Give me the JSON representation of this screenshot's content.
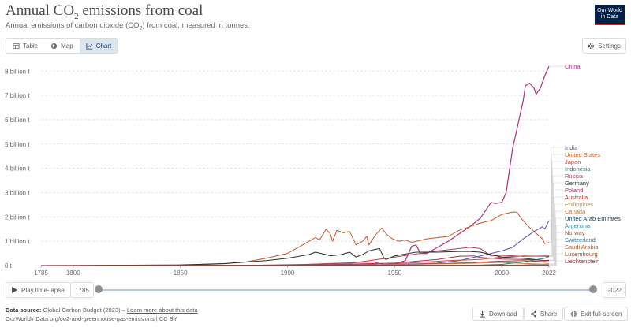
{
  "header": {
    "title_main": "Annual CO",
    "title_sub": "2",
    "title_end": " emissions from coal",
    "subtitle_a": "Annual emissions of carbon dioxide (CO",
    "subtitle_sub": "2",
    "subtitle_b": ") from coal, measured in tonnes.",
    "logo_line1": "Our World",
    "logo_line2": "in Data"
  },
  "tabs": [
    {
      "label": "Table",
      "icon": "table-icon",
      "active": false
    },
    {
      "label": "Map",
      "icon": "globe-icon",
      "active": false
    },
    {
      "label": "Chart",
      "icon": "line-chart-icon",
      "active": true
    }
  ],
  "settings_label": "Settings",
  "controls": {
    "play_label": "Play time-lapse",
    "start_year": "1785",
    "end_year": "2022"
  },
  "footer": {
    "source_label": "Data source:",
    "source_text": "Global Carbon Budget (2023) –",
    "learn_more": "Learn more about this data",
    "url_line": "OurWorldInData.org/co2-and-greenhouse-gas-emissions | CC BY"
  },
  "buttons": {
    "download": "Download",
    "share": "Share",
    "fullscreen": "Exit full-screen"
  },
  "chart_data": {
    "type": "line",
    "title": "Annual CO₂ emissions from coal",
    "xlim": [
      1785,
      2022
    ],
    "ylim": [
      0,
      8.3
    ],
    "yticks": [
      0,
      1,
      2,
      3,
      4,
      5,
      6,
      7,
      8
    ],
    "ytick_labels": [
      "0 t",
      "1 billion t",
      "2 billion t",
      "3 billion t",
      "4 billion t",
      "5 billion t",
      "6 billion t",
      "7 billion t",
      "8 billion t"
    ],
    "xticks": [
      1785,
      1800,
      1850,
      1900,
      1950,
      2000,
      2022
    ],
    "grid": "horizontal dashed",
    "series": [
      {
        "name": "China",
        "color": "#b13080",
        "x": [
          1785,
          1900,
          1920,
          1940,
          1945,
          1950,
          1955,
          1958,
          1960,
          1962,
          1965,
          1970,
          1975,
          1980,
          1985,
          1990,
          1995,
          1997,
          2000,
          2002,
          2005,
          2008,
          2010,
          2011,
          2013,
          2015,
          2016,
          2018,
          2020,
          2022
        ],
        "values": [
          0,
          0.002,
          0.02,
          0.05,
          0.02,
          0.08,
          0.2,
          0.8,
          0.85,
          0.5,
          0.5,
          0.75,
          1.0,
          1.3,
          1.6,
          1.95,
          2.6,
          2.55,
          2.6,
          3.0,
          4.8,
          6.0,
          6.8,
          7.4,
          7.5,
          7.3,
          7.05,
          7.3,
          7.8,
          8.2
        ]
      },
      {
        "name": "India",
        "color": "#5a4fa8",
        "x": [
          1785,
          1900,
          1950,
          1970,
          1980,
          1990,
          2000,
          2005,
          2010,
          2015,
          2019,
          2020,
          2022
        ],
        "values": [
          0,
          0.005,
          0.04,
          0.1,
          0.2,
          0.4,
          0.6,
          0.75,
          1.1,
          1.4,
          1.6,
          1.5,
          1.85
        ]
      },
      {
        "name": "United States",
        "color": "#c45a24",
        "x": [
          1785,
          1800,
          1820,
          1840,
          1860,
          1870,
          1880,
          1890,
          1900,
          1905,
          1910,
          1913,
          1915,
          1918,
          1920,
          1921,
          1923,
          1926,
          1929,
          1932,
          1935,
          1937,
          1938,
          1941,
          1944,
          1946,
          1949,
          1952,
          1955,
          1958,
          1960,
          1965,
          1970,
          1975,
          1980,
          1985,
          1990,
          1995,
          2000,
          2005,
          2007,
          2009,
          2012,
          2015,
          2017,
          2019,
          2020,
          2022
        ],
        "values": [
          0,
          0.001,
          0.002,
          0.007,
          0.04,
          0.07,
          0.14,
          0.3,
          0.5,
          0.75,
          1.0,
          1.15,
          1.05,
          1.5,
          1.3,
          1.0,
          1.45,
          1.35,
          1.4,
          0.85,
          1.0,
          1.2,
          0.85,
          1.25,
          1.55,
          1.3,
          1.1,
          1.0,
          1.05,
          0.95,
          1.0,
          1.1,
          1.15,
          1.2,
          1.45,
          1.6,
          1.75,
          1.85,
          2.1,
          2.2,
          2.2,
          1.95,
          1.65,
          1.4,
          1.25,
          1.1,
          0.9,
          0.95
        ]
      },
      {
        "name": "Japan",
        "color": "#d3493a",
        "x": [
          1785,
          1900,
          1940,
          1945,
          1960,
          1975,
          1990,
          2000,
          2010,
          2020,
          2022
        ],
        "values": [
          0,
          0.02,
          0.15,
          0.05,
          0.12,
          0.2,
          0.25,
          0.35,
          0.4,
          0.38,
          0.37
        ]
      },
      {
        "name": "Indonesia",
        "color": "#2c8465",
        "x": [
          1785,
          1980,
          1990,
          2000,
          2010,
          2020,
          2022
        ],
        "values": [
          0,
          0.005,
          0.02,
          0.05,
          0.15,
          0.3,
          0.37
        ]
      },
      {
        "name": "Russia",
        "color": "#b03e5c",
        "x": [
          1785,
          1880,
          1910,
          1930,
          1950,
          1970,
          1985,
          1990,
          1995,
          2000,
          2010,
          2022
        ],
        "values": [
          0,
          0.01,
          0.05,
          0.1,
          0.35,
          0.6,
          0.75,
          0.7,
          0.4,
          0.42,
          0.38,
          0.4
        ]
      },
      {
        "name": "Germany",
        "color": "#1f3325",
        "x": [
          1785,
          1800,
          1850,
          1870,
          1890,
          1900,
          1910,
          1913,
          1918,
          1920,
          1925,
          1929,
          1932,
          1935,
          1938,
          1940,
          1943,
          1945,
          1946,
          1950,
          1960,
          1970,
          1980,
          1985,
          1990,
          2000,
          2010,
          2020,
          2022
        ],
        "values": [
          0,
          0.001,
          0.03,
          0.08,
          0.2,
          0.3,
          0.45,
          0.55,
          0.45,
          0.4,
          0.45,
          0.55,
          0.35,
          0.45,
          0.6,
          0.65,
          0.7,
          0.3,
          0.25,
          0.4,
          0.55,
          0.55,
          0.58,
          0.58,
          0.55,
          0.35,
          0.3,
          0.2,
          0.22
        ]
      },
      {
        "name": "Poland",
        "color": "#a2305e",
        "x": [
          1785,
          1900,
          1950,
          1970,
          1980,
          1987,
          1990,
          2000,
          2010,
          2022
        ],
        "values": [
          0,
          0.005,
          0.1,
          0.25,
          0.38,
          0.4,
          0.33,
          0.27,
          0.25,
          0.2
        ]
      },
      {
        "name": "Australia",
        "color": "#b5371f",
        "x": [
          1785,
          1900,
          1950,
          1980,
          2000,
          2010,
          2022
        ],
        "values": [
          0,
          0.005,
          0.03,
          0.1,
          0.18,
          0.2,
          0.15
        ]
      },
      {
        "name": "Philippines",
        "color": "#c2943a",
        "x": [
          1785,
          1990,
          2010,
          2022
        ],
        "values": [
          0,
          0.002,
          0.03,
          0.07
        ]
      },
      {
        "name": "Canada",
        "color": "#c5783a",
        "x": [
          1785,
          1900,
          1950,
          1980,
          2000,
          2022
        ],
        "values": [
          0,
          0.01,
          0.04,
          0.08,
          0.13,
          0.04
        ]
      },
      {
        "name": "United Arab Emirates",
        "color": "#123e60",
        "x": [
          1785,
          2010,
          2022
        ],
        "values": [
          0,
          0.002,
          0.01
        ]
      },
      {
        "name": "Argentina",
        "color": "#2e8a95",
        "x": [
          1785,
          1950,
          2022
        ],
        "values": [
          0,
          0.005,
          0.005
        ]
      },
      {
        "name": "Norway",
        "color": "#7a5b4d",
        "x": [
          1785,
          1950,
          2022
        ],
        "values": [
          0,
          0.002,
          0.002
        ]
      },
      {
        "name": "Switzerland",
        "color": "#2b77a8",
        "x": [
          1785,
          1950,
          2022
        ],
        "values": [
          0,
          0.002,
          0.001
        ]
      },
      {
        "name": "Saudi Arabia",
        "color": "#bd5d34",
        "x": [
          1785,
          2022
        ],
        "values": [
          0,
          0.001
        ]
      },
      {
        "name": "Luxembourg",
        "color": "#a24b13",
        "x": [
          1785,
          1950,
          2022
        ],
        "values": [
          0,
          0.003,
          0.001
        ]
      },
      {
        "name": "Liechtenstein",
        "color": "#8a3232",
        "x": [
          1785,
          2022
        ],
        "values": [
          0,
          0.0
        ]
      }
    ]
  }
}
